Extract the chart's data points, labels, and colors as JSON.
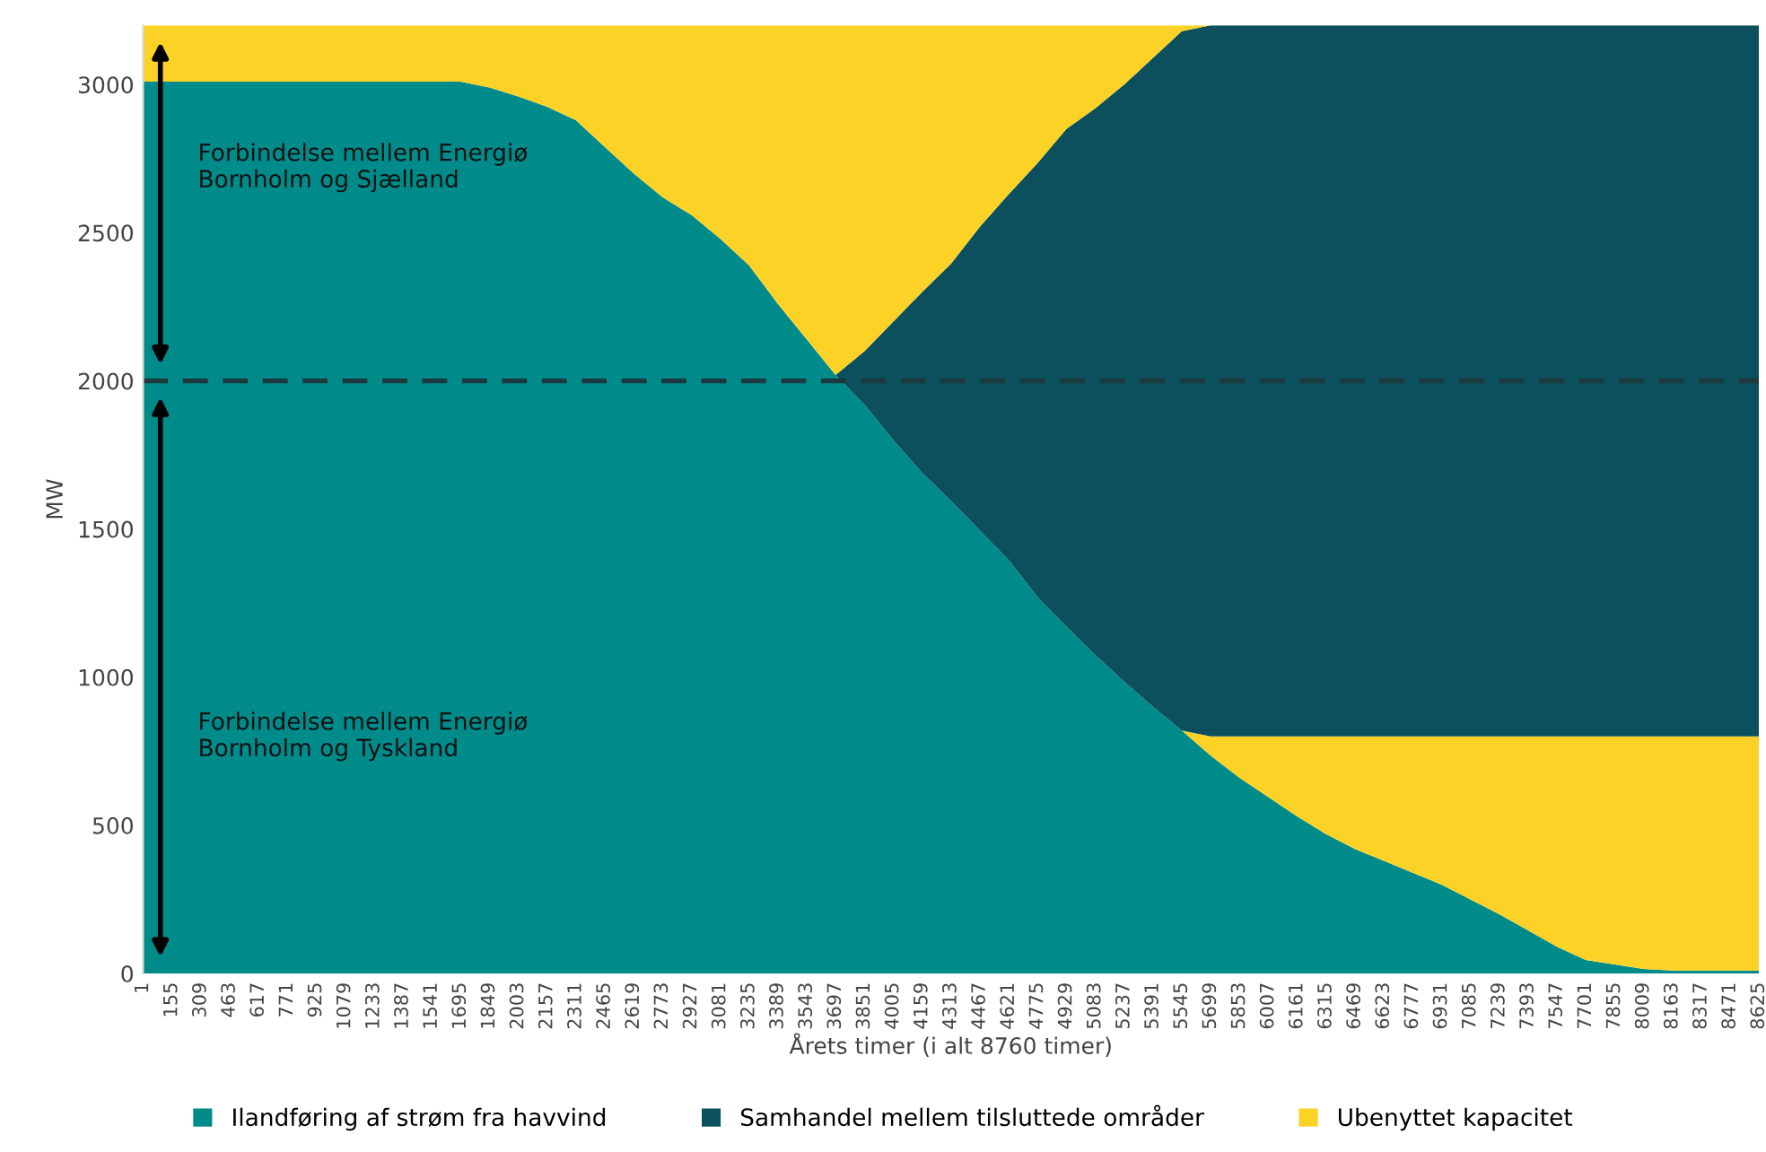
{
  "chart_data": {
    "type": "area",
    "stacked": true,
    "ylabel": "MW",
    "xlabel": "Årets timer (i alt 8760 timer)",
    "categories": [
      "1",
      "155",
      "309",
      "463",
      "617",
      "771",
      "925",
      "1079",
      "1233",
      "1387",
      "1541",
      "1695",
      "1849",
      "2003",
      "2157",
      "2311",
      "2465",
      "2619",
      "2773",
      "2927",
      "3081",
      "3235",
      "3389",
      "3543",
      "3697",
      "3851",
      "4005",
      "4159",
      "4313",
      "4467",
      "4621",
      "4775",
      "4929",
      "5083",
      "5237",
      "5391",
      "5545",
      "5699",
      "5853",
      "6007",
      "6161",
      "6315",
      "6469",
      "6623",
      "6777",
      "6931",
      "7085",
      "7239",
      "7393",
      "7547",
      "7701",
      "7855",
      "8009",
      "8163",
      "8317",
      "8471",
      "8625"
    ],
    "series": [
      {
        "name": "Ilandføring af strøm fra havvind",
        "color": "#008b8b",
        "values": [
          3010,
          3010,
          3010,
          3010,
          3010,
          3010,
          3010,
          3010,
          3010,
          3010,
          3010,
          3010,
          2990,
          2960,
          2925,
          2880,
          2790,
          2700,
          2620,
          2560,
          2480,
          2390,
          2260,
          2140,
          2020,
          1920,
          1800,
          1690,
          1595,
          1495,
          1395,
          1270,
          1170,
          1075,
          985,
          900,
          820,
          735,
          660,
          595,
          530,
          470,
          420,
          380,
          340,
          300,
          250,
          200,
          145,
          90,
          45,
          30,
          15,
          10,
          10,
          10,
          10
        ]
      },
      {
        "color": "#fcd226",
        "values": [
          0,
          0,
          0,
          0,
          0,
          0,
          0,
          0,
          0,
          0,
          0,
          0,
          0,
          0,
          0,
          0,
          0,
          0,
          0,
          0,
          0,
          0,
          0,
          0,
          0,
          0,
          0,
          0,
          0,
          0,
          0,
          0,
          0,
          0,
          0,
          0,
          0,
          65,
          140,
          205,
          270,
          330,
          380,
          420,
          460,
          500,
          550,
          600,
          655,
          710,
          755,
          770,
          785,
          790,
          790,
          790,
          790
        ]
      },
      {
        "name": "Samhandel mellem tilsluttede områder",
        "color": "#0b505c",
        "values": [
          0,
          0,
          0,
          0,
          0,
          0,
          0,
          0,
          0,
          0,
          0,
          0,
          0,
          0,
          0,
          0,
          0,
          0,
          0,
          0,
          0,
          0,
          0,
          0,
          0,
          180,
          400,
          610,
          800,
          1025,
          1235,
          1465,
          1680,
          1845,
          2015,
          2190,
          2360,
          2400,
          2400,
          2400,
          2400,
          2400,
          2400,
          2400,
          2400,
          2400,
          2400,
          2400,
          2400,
          2400,
          2400,
          2400,
          2400,
          2400,
          2400,
          2400,
          2400
        ]
      },
      {
        "name": "Ubenyttet kapacitet",
        "color": "#fcd226",
        "values": [
          190,
          190,
          190,
          190,
          190,
          190,
          190,
          190,
          190,
          190,
          190,
          190,
          210,
          240,
          275,
          320,
          410,
          500,
          580,
          640,
          720,
          810,
          940,
          1060,
          1180,
          1100,
          1000,
          900,
          805,
          680,
          570,
          465,
          350,
          280,
          200,
          110,
          20,
          0,
          0,
          0,
          0,
          0,
          0,
          0,
          0,
          0,
          0,
          0,
          0,
          0,
          0,
          0,
          0,
          0,
          0,
          0,
          0
        ]
      }
    ],
    "ylim": [
      0,
      3200
    ],
    "yticks": [
      0,
      500,
      1000,
      1500,
      2000,
      2500,
      3000
    ],
    "grid": false,
    "legend": "bottom",
    "ref_lines": [
      {
        "axis": "y",
        "value": 2000,
        "color": "#1a3a40",
        "line_style": "dashed"
      }
    ],
    "annotations": [
      "Forbindelse mellem Energiø\nBornholm og Sjælland",
      "Forbindelse mellem Energiø\nBornholm og Tyskland"
    ]
  }
}
